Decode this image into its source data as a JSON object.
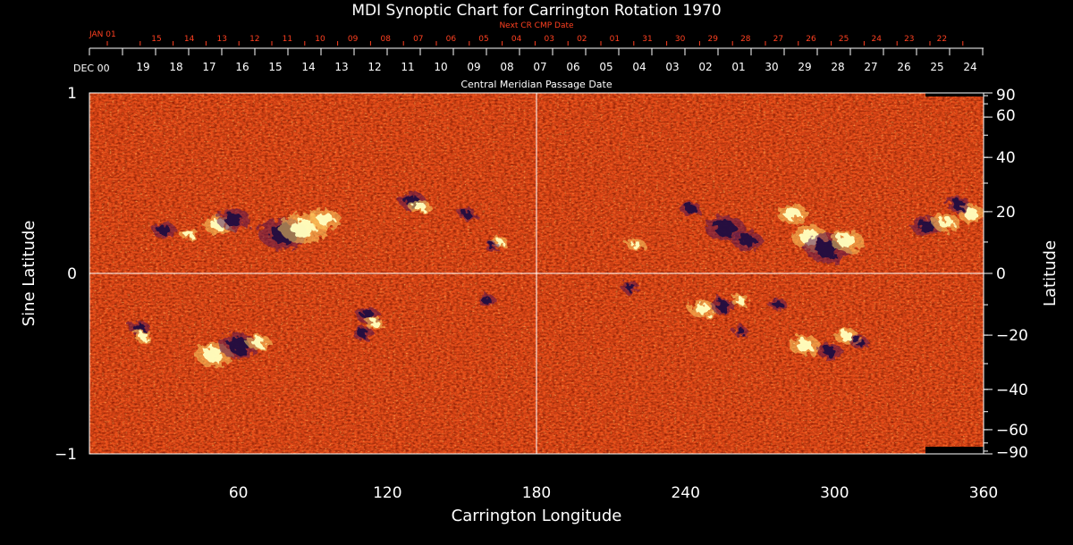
{
  "chart_data": {
    "type": "heatmap",
    "title": "MDI Synoptic Chart for Carrington Rotation 1970",
    "xlabel": "Carrington Longitude",
    "ylabel_left": "Sine Latitude",
    "ylabel_right": "Latitude",
    "x_range": [
      0,
      360
    ],
    "y_range": [
      -1,
      1
    ],
    "x_ticks": [
      60,
      120,
      180,
      240,
      300,
      360
    ],
    "y_ticks_left": [
      1,
      0,
      -1
    ],
    "y_ticks_right": [
      90,
      60,
      40,
      20,
      0,
      -20,
      -40,
      -60,
      -90
    ],
    "top_axis_label": "Central Meridian Passage Date",
    "top_start_label": "DEC 00",
    "top_dates": [
      "19",
      "18",
      "17",
      "16",
      "15",
      "14",
      "13",
      "12",
      "11",
      "10",
      "09",
      "08",
      "07",
      "06",
      "05",
      "04",
      "03",
      "02",
      "01",
      "30",
      "29",
      "28",
      "27",
      "26",
      "25",
      "24"
    ],
    "next_cr_label": "Next CR CMP Date",
    "next_cr_start_label": "JAN 01",
    "next_cr_dates": [
      "15",
      "14",
      "13",
      "12",
      "11",
      "10",
      "09",
      "08",
      "07",
      "06",
      "05",
      "04",
      "03",
      "02",
      "01",
      "31",
      "30",
      "29",
      "28",
      "27",
      "26",
      "25",
      "24",
      "23",
      "22"
    ],
    "colors": {
      "background": "#000000",
      "field_orange": "#e8501a",
      "field_red": "#b82810",
      "positive_polarity": "#ffffc0",
      "negative_polarity": "#200a40",
      "grid": "#ffffff",
      "next_cr_text": "#ff4020"
    },
    "active_regions": [
      {
        "lon": 52,
        "slat": 0.27,
        "polarity": "positive",
        "size": 1.0
      },
      {
        "lon": 58,
        "slat": 0.3,
        "polarity": "negative",
        "size": 1.1
      },
      {
        "lon": 78,
        "slat": 0.22,
        "polarity": "negative",
        "size": 1.6
      },
      {
        "lon": 86,
        "slat": 0.25,
        "polarity": "positive",
        "size": 1.5
      },
      {
        "lon": 95,
        "slat": 0.3,
        "polarity": "positive",
        "size": 1.0
      },
      {
        "lon": 30,
        "slat": 0.24,
        "polarity": "negative",
        "size": 0.8
      },
      {
        "lon": 40,
        "slat": 0.22,
        "polarity": "positive",
        "size": 0.6
      },
      {
        "lon": 130,
        "slat": 0.4,
        "polarity": "negative",
        "size": 0.9
      },
      {
        "lon": 133,
        "slat": 0.37,
        "polarity": "positive",
        "size": 0.7
      },
      {
        "lon": 152,
        "slat": 0.33,
        "polarity": "negative",
        "size": 0.6
      },
      {
        "lon": 165,
        "slat": 0.17,
        "polarity": "positive",
        "size": 0.6
      },
      {
        "lon": 162,
        "slat": 0.15,
        "polarity": "negative",
        "size": 0.5
      },
      {
        "lon": 20,
        "slat": -0.3,
        "polarity": "negative",
        "size": 0.7
      },
      {
        "lon": 22,
        "slat": -0.35,
        "polarity": "positive",
        "size": 0.6
      },
      {
        "lon": 50,
        "slat": -0.45,
        "polarity": "positive",
        "size": 1.2
      },
      {
        "lon": 60,
        "slat": -0.4,
        "polarity": "negative",
        "size": 1.3
      },
      {
        "lon": 68,
        "slat": -0.38,
        "polarity": "positive",
        "size": 0.8
      },
      {
        "lon": 112,
        "slat": -0.23,
        "polarity": "negative",
        "size": 0.8
      },
      {
        "lon": 110,
        "slat": -0.33,
        "polarity": "negative",
        "size": 0.7
      },
      {
        "lon": 115,
        "slat": -0.28,
        "polarity": "positive",
        "size": 0.6
      },
      {
        "lon": 160,
        "slat": -0.15,
        "polarity": "negative",
        "size": 0.6
      },
      {
        "lon": 220,
        "slat": 0.16,
        "polarity": "positive",
        "size": 0.6
      },
      {
        "lon": 218,
        "slat": -0.08,
        "polarity": "negative",
        "size": 0.6
      },
      {
        "lon": 242,
        "slat": 0.36,
        "polarity": "negative",
        "size": 0.7
      },
      {
        "lon": 256,
        "slat": 0.25,
        "polarity": "negative",
        "size": 1.3
      },
      {
        "lon": 265,
        "slat": 0.18,
        "polarity": "negative",
        "size": 1.0
      },
      {
        "lon": 283,
        "slat": 0.33,
        "polarity": "positive",
        "size": 1.0
      },
      {
        "lon": 290,
        "slat": 0.2,
        "polarity": "positive",
        "size": 1.2
      },
      {
        "lon": 297,
        "slat": 0.14,
        "polarity": "negative",
        "size": 1.5
      },
      {
        "lon": 305,
        "slat": 0.18,
        "polarity": "positive",
        "size": 1.1
      },
      {
        "lon": 337,
        "slat": 0.26,
        "polarity": "negative",
        "size": 1.0
      },
      {
        "lon": 345,
        "slat": 0.28,
        "polarity": "positive",
        "size": 0.9
      },
      {
        "lon": 355,
        "slat": 0.33,
        "polarity": "positive",
        "size": 0.9
      },
      {
        "lon": 350,
        "slat": 0.38,
        "polarity": "negative",
        "size": 0.8
      },
      {
        "lon": 247,
        "slat": -0.2,
        "polarity": "positive",
        "size": 0.9
      },
      {
        "lon": 255,
        "slat": -0.18,
        "polarity": "negative",
        "size": 0.8
      },
      {
        "lon": 262,
        "slat": -0.15,
        "polarity": "positive",
        "size": 0.6
      },
      {
        "lon": 277,
        "slat": -0.17,
        "polarity": "negative",
        "size": 0.6
      },
      {
        "lon": 288,
        "slat": -0.4,
        "polarity": "positive",
        "size": 1.0
      },
      {
        "lon": 298,
        "slat": -0.43,
        "polarity": "negative",
        "size": 0.8
      },
      {
        "lon": 305,
        "slat": -0.35,
        "polarity": "positive",
        "size": 0.8
      },
      {
        "lon": 310,
        "slat": -0.38,
        "polarity": "negative",
        "size": 0.6
      },
      {
        "lon": 262,
        "slat": -0.32,
        "polarity": "negative",
        "size": 0.5
      }
    ]
  }
}
